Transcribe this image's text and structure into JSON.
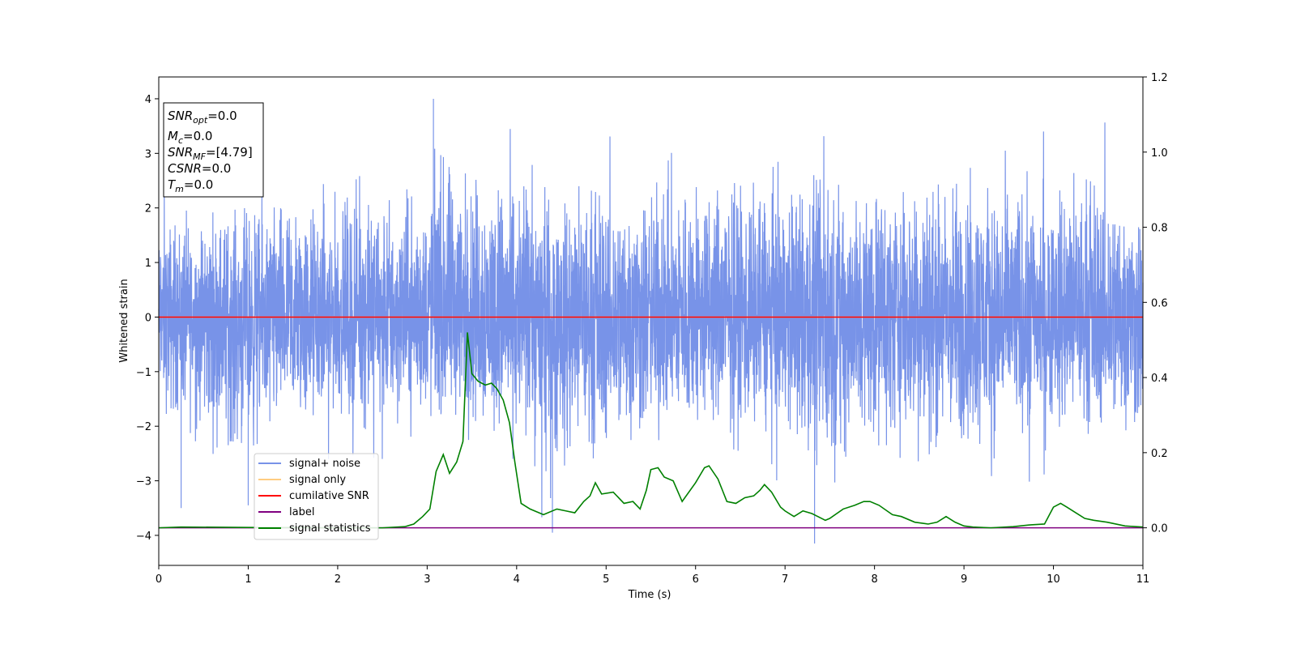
{
  "chart_data": {
    "type": "line",
    "xlabel": "Time (s)",
    "ylabel": "Whitened strain",
    "xlim": [
      0,
      11
    ],
    "ylim": [
      -4.55,
      4.4
    ],
    "y2lim": [
      -0.1,
      1.2
    ],
    "x_ticks": [
      "0",
      "1",
      "2",
      "3",
      "4",
      "5",
      "6",
      "7",
      "8",
      "9",
      "10",
      "11"
    ],
    "y_ticks": [
      "4",
      "3",
      "2",
      "1",
      "0",
      "−1",
      "−2",
      "−3",
      "−4"
    ],
    "y2_ticks": [
      "1.2",
      "1.0",
      "0.8",
      "0.6",
      "0.4",
      "0.2",
      "0.0"
    ],
    "grid": false,
    "legend_placement": "lower-left",
    "legend": [
      "signal+ noise",
      "signal only",
      "cumilative SNR",
      "label",
      "signal statistics"
    ],
    "series": [
      {
        "name": "signal+ noise",
        "color": "#7893e8",
        "axis": "left",
        "description_values": "noise band, mostly within [-2, 2], peaks ~4.0 near t=3.07 and ~-4.15 near t=7.33",
        "envelope": {
          "x": [
            0,
            1,
            2,
            3,
            3.07,
            4,
            4.4,
            5,
            6,
            7,
            7.33,
            8,
            9,
            10,
            10.7,
            11
          ],
          "max": [
            2.5,
            2.7,
            3.0,
            3.1,
            4.0,
            3.4,
            3.0,
            3.3,
            3.5,
            3.4,
            3.3,
            3.4,
            3.4,
            3.4,
            3.6,
            2.7
          ],
          "min": [
            -2.4,
            -3.5,
            -2.5,
            -2.7,
            -2.5,
            -3.0,
            -3.95,
            -3.3,
            -2.9,
            -3.0,
            -4.15,
            -3.0,
            -3.6,
            -2.8,
            -2.9,
            -3.0
          ]
        }
      },
      {
        "name": "signal only",
        "color": "#ffcc80",
        "axis": "left",
        "x": [
          0,
          11
        ],
        "y": [
          0,
          0
        ]
      },
      {
        "name": "cumilative SNR",
        "color": "#ff0000",
        "axis": "left",
        "x": [
          0,
          11
        ],
        "y": [
          0,
          0
        ]
      },
      {
        "name": "label",
        "color": "#800080",
        "axis": "right",
        "x": [
          0,
          11
        ],
        "y": [
          0,
          0
        ]
      },
      {
        "name": "signal statistics",
        "color": "#008000",
        "axis": "right",
        "x": [
          0,
          0.25,
          1,
          2,
          2.5,
          2.75,
          2.85,
          2.95,
          3.03,
          3.1,
          3.18,
          3.25,
          3.33,
          3.4,
          3.45,
          3.5,
          3.57,
          3.65,
          3.72,
          3.78,
          3.85,
          3.92,
          3.98,
          4.05,
          4.15,
          4.3,
          4.45,
          4.55,
          4.65,
          4.75,
          4.82,
          4.88,
          4.95,
          5.08,
          5.2,
          5.3,
          5.38,
          5.45,
          5.5,
          5.58,
          5.65,
          5.75,
          5.85,
          6.0,
          6.1,
          6.15,
          6.25,
          6.35,
          6.45,
          6.55,
          6.65,
          6.72,
          6.77,
          6.85,
          6.95,
          7.0,
          7.1,
          7.2,
          7.3,
          7.45,
          7.5,
          7.65,
          7.78,
          7.88,
          7.95,
          8.05,
          8.2,
          8.3,
          8.45,
          8.6,
          8.7,
          8.8,
          8.9,
          9.0,
          9.1,
          9.3,
          9.55,
          9.75,
          9.9,
          10.0,
          10.08,
          10.15,
          10.25,
          10.35,
          10.45,
          10.6,
          10.8,
          11
        ],
        "y": [
          0.0,
          0.002,
          0.001,
          0.0,
          0.0,
          0.003,
          0.01,
          0.03,
          0.05,
          0.15,
          0.195,
          0.145,
          0.175,
          0.23,
          0.52,
          0.41,
          0.39,
          0.38,
          0.385,
          0.37,
          0.34,
          0.28,
          0.175,
          0.065,
          0.05,
          0.035,
          0.05,
          0.045,
          0.04,
          0.07,
          0.085,
          0.12,
          0.09,
          0.095,
          0.065,
          0.07,
          0.05,
          0.1,
          0.155,
          0.16,
          0.135,
          0.125,
          0.07,
          0.12,
          0.16,
          0.165,
          0.13,
          0.07,
          0.065,
          0.08,
          0.085,
          0.1,
          0.115,
          0.095,
          0.055,
          0.045,
          0.03,
          0.045,
          0.038,
          0.02,
          0.025,
          0.05,
          0.06,
          0.07,
          0.07,
          0.06,
          0.035,
          0.03,
          0.015,
          0.01,
          0.015,
          0.03,
          0.015,
          0.005,
          0.002,
          0.0,
          0.003,
          0.008,
          0.01,
          0.055,
          0.065,
          0.055,
          0.04,
          0.025,
          0.02,
          0.015,
          0.005,
          0.002
        ]
      }
    ],
    "annotation": {
      "snr_opt": {
        "name": "SNR",
        "sub": "opt",
        "value": "=0.0"
      },
      "mc": {
        "name": "M",
        "sub": "c",
        "value": "=0.0"
      },
      "snr_mf": {
        "name": "SNR",
        "sub": "MF",
        "value": "=[4.79]"
      },
      "csnr": {
        "name": "CSNR",
        "value": "=0.0"
      },
      "tm": {
        "name": "T",
        "sub": "m",
        "value": "=0.0"
      }
    }
  }
}
